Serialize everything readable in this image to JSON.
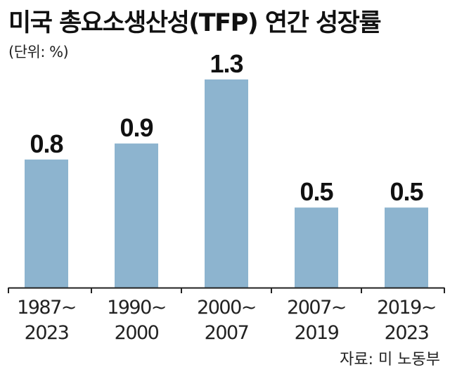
{
  "title": "미국 총요소생산성(TFP) 연간 성장률",
  "unit_label": "(단위: %)",
  "source": "자료: 미 노동부",
  "chart_data": {
    "type": "bar",
    "categories": [
      [
        "1987~",
        "2023"
      ],
      [
        "1990~",
        "2000"
      ],
      [
        "2000~",
        "2007"
      ],
      [
        "2007~",
        "2019"
      ],
      [
        "2019~",
        "2023"
      ]
    ],
    "values": [
      0.8,
      0.9,
      1.3,
      0.5,
      0.5
    ],
    "value_labels": [
      "0.8",
      "0.9",
      "1.3",
      "0.5",
      "0.5"
    ],
    "ylim": [
      0,
      1.3
    ],
    "grid": false,
    "bar_color": "#8db4cf",
    "axis_color": "#222222"
  }
}
